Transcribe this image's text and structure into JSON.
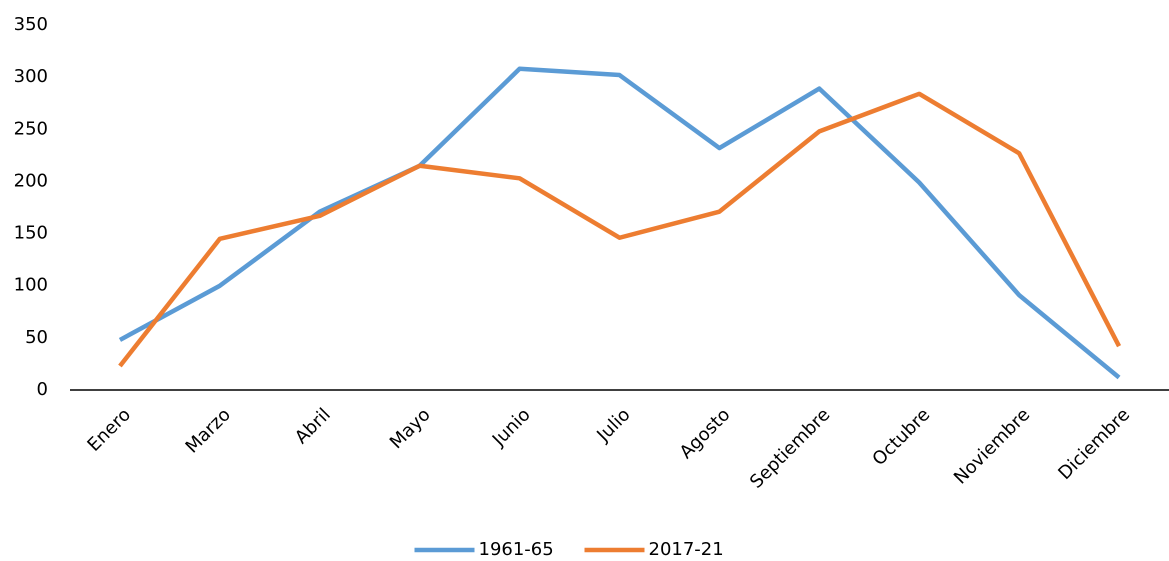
{
  "chart_data": {
    "type": "line",
    "categories": [
      "Enero",
      "Marzo",
      "Abril",
      "Mayo",
      "Junio",
      "Julio",
      "Agosto",
      "Septiembre",
      "Octubre",
      "Noviembre",
      "Diciembre"
    ],
    "series": [
      {
        "name": "1961-65",
        "color": "#5b9bd5",
        "values": [
          48,
          100,
          171,
          215,
          308,
          302,
          232,
          289,
          199,
          91,
          12
        ]
      },
      {
        "name": "2017-21",
        "color": "#ed7d31",
        "values": [
          23,
          145,
          167,
          215,
          203,
          146,
          171,
          248,
          284,
          227,
          42
        ]
      }
    ],
    "ylim": [
      0,
      350
    ],
    "yticks": [
      0,
      50,
      100,
      150,
      200,
      250,
      300,
      350
    ],
    "grid": false,
    "legend": "bottom"
  }
}
